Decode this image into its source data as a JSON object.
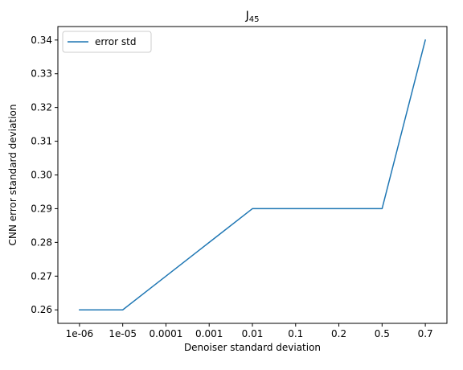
{
  "chart_data": {
    "type": "line",
    "title": "J",
    "title_subscript": "45",
    "xlabel": "Denoiser standard deviation",
    "ylabel": "CNN error standard deviation",
    "categories": [
      "1e-06",
      "1e-05",
      "0.0001",
      "0.001",
      "0.01",
      "0.1",
      "0.2",
      "0.5",
      "0.7"
    ],
    "series": [
      {
        "name": "error std",
        "color": "#1f77b4",
        "values": [
          0.26,
          0.26,
          0.27,
          0.28,
          0.29,
          0.29,
          0.29,
          0.29,
          0.34
        ]
      }
    ],
    "ylim": [
      0.256,
      0.344
    ],
    "yticks": [
      0.26,
      0.27,
      0.28,
      0.29,
      0.3,
      0.31,
      0.32,
      0.33,
      0.34
    ],
    "ytick_labels": [
      "0.26",
      "0.27",
      "0.28",
      "0.29",
      "0.30",
      "0.31",
      "0.32",
      "0.33",
      "0.34"
    ],
    "grid": false,
    "legend": {
      "position": "top-left"
    }
  }
}
